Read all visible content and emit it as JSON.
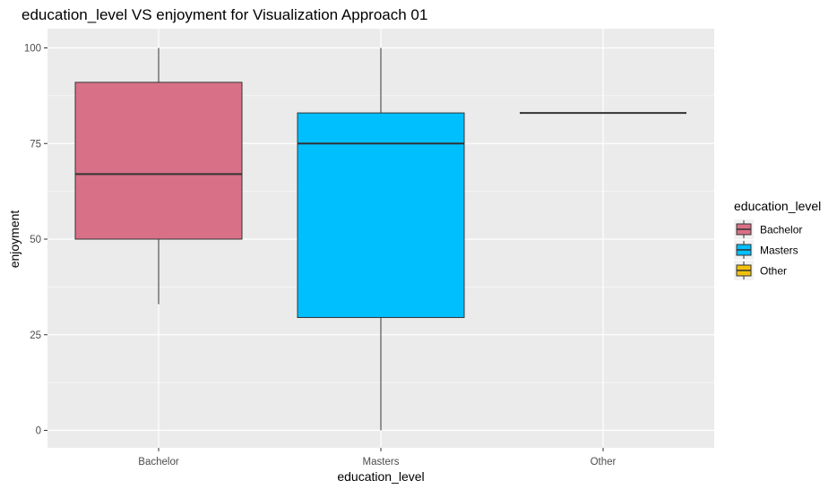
{
  "chart_data": {
    "type": "box",
    "title": "education_level VS enjoyment for Visualization Approach 01",
    "xlabel": "education_level",
    "ylabel": "enjoyment",
    "ylim": [
      0,
      100
    ],
    "yticks": [
      0,
      25,
      50,
      75,
      100
    ],
    "categories": [
      "Bachelor",
      "Masters",
      "Other"
    ],
    "boxes": [
      {
        "category": "Bachelor",
        "min": 33,
        "q1": 50,
        "median": 67,
        "q3": 91,
        "max": 100,
        "color": "#d87087"
      },
      {
        "category": "Masters",
        "min": 0,
        "q1": 29.5,
        "median": 75,
        "q3": 83,
        "max": 100,
        "color": "#00bfff"
      },
      {
        "category": "Other",
        "min": 83,
        "q1": 83,
        "median": 83,
        "q3": 83,
        "max": 83,
        "color": "#f2c10d"
      }
    ],
    "legend": {
      "title": "education_level",
      "position": "right",
      "entries": [
        "Bachelor",
        "Masters",
        "Other"
      ]
    },
    "grid": true,
    "panel_background": "#ebebeb"
  }
}
